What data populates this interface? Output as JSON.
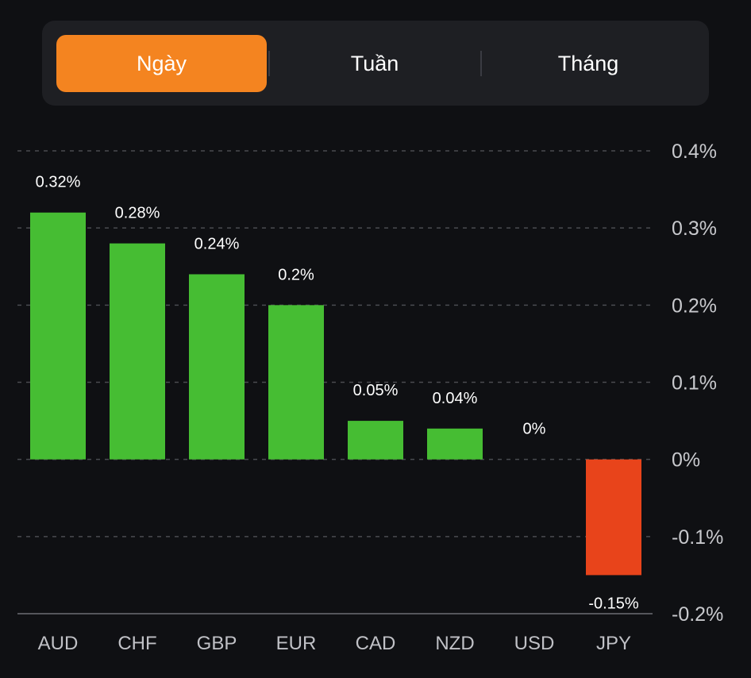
{
  "period_tabs": {
    "items": [
      {
        "label": "Ngày",
        "active": true
      },
      {
        "label": "Tuần",
        "active": false
      },
      {
        "label": "Tháng",
        "active": false
      }
    ],
    "active_color": "#f48420"
  },
  "colors": {
    "positive": "#46bd33",
    "negative": "#e8441b",
    "background": "#0f1013",
    "grid": "#4a4b50"
  },
  "chart_data": {
    "type": "bar",
    "title": "",
    "xlabel": "",
    "ylabel": "",
    "categories": [
      "AUD",
      "CHF",
      "GBP",
      "EUR",
      "CAD",
      "NZD",
      "USD",
      "JPY"
    ],
    "values": [
      0.32,
      0.28,
      0.24,
      0.2,
      0.05,
      0.04,
      0,
      -0.15
    ],
    "value_labels": [
      "0.32%",
      "0.28%",
      "0.24%",
      "0.2%",
      "0.05%",
      "0.04%",
      "0%",
      "-0.15%"
    ],
    "unit": "%",
    "ylim": [
      -0.2,
      0.4
    ],
    "yticks": [
      0.4,
      0.3,
      0.2,
      0.1,
      0,
      -0.1,
      -0.2
    ],
    "ytick_labels": [
      "0.4%",
      "0.3%",
      "0.2%",
      "0.1%",
      "0%",
      "-0.1%",
      "-0.2%"
    ],
    "y_axis_position": "right",
    "grid": true,
    "grid_style": "dashed",
    "legend": "none"
  }
}
